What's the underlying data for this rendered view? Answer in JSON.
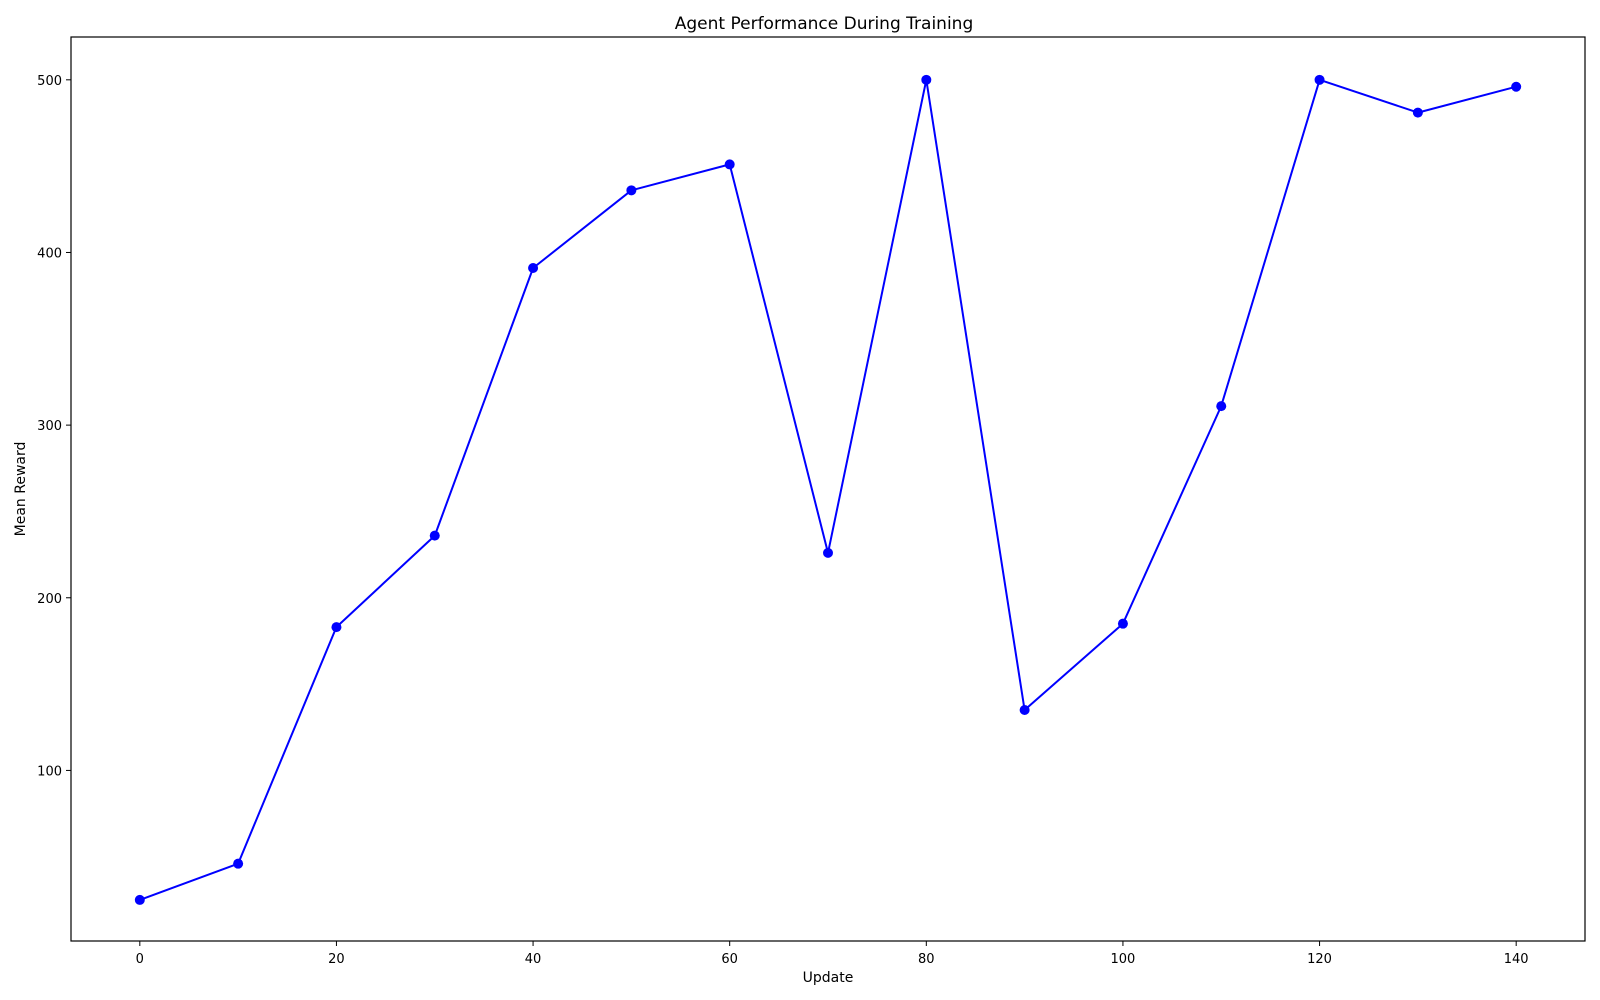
{
  "chart_data": {
    "type": "line",
    "title": "Agent Performance During Training",
    "xlabel": "Update",
    "ylabel": "Mean Reward",
    "xlim": [
      -7,
      147
    ],
    "ylim": [
      1.2,
      524.8
    ],
    "xticks": [
      0,
      20,
      40,
      60,
      80,
      100,
      120,
      140
    ],
    "yticks": [
      100,
      200,
      300,
      400,
      500
    ],
    "grid": false,
    "legend": false,
    "series": [
      {
        "color": "#0000ff",
        "marker": "circle",
        "x": [
          0,
          10,
          20,
          30,
          40,
          50,
          60,
          70,
          80,
          90,
          100,
          110,
          120,
          130,
          140
        ],
        "y": [
          25,
          46,
          183,
          236,
          391,
          436,
          451,
          226,
          500,
          135,
          185,
          311,
          500,
          481,
          496
        ]
      }
    ]
  }
}
